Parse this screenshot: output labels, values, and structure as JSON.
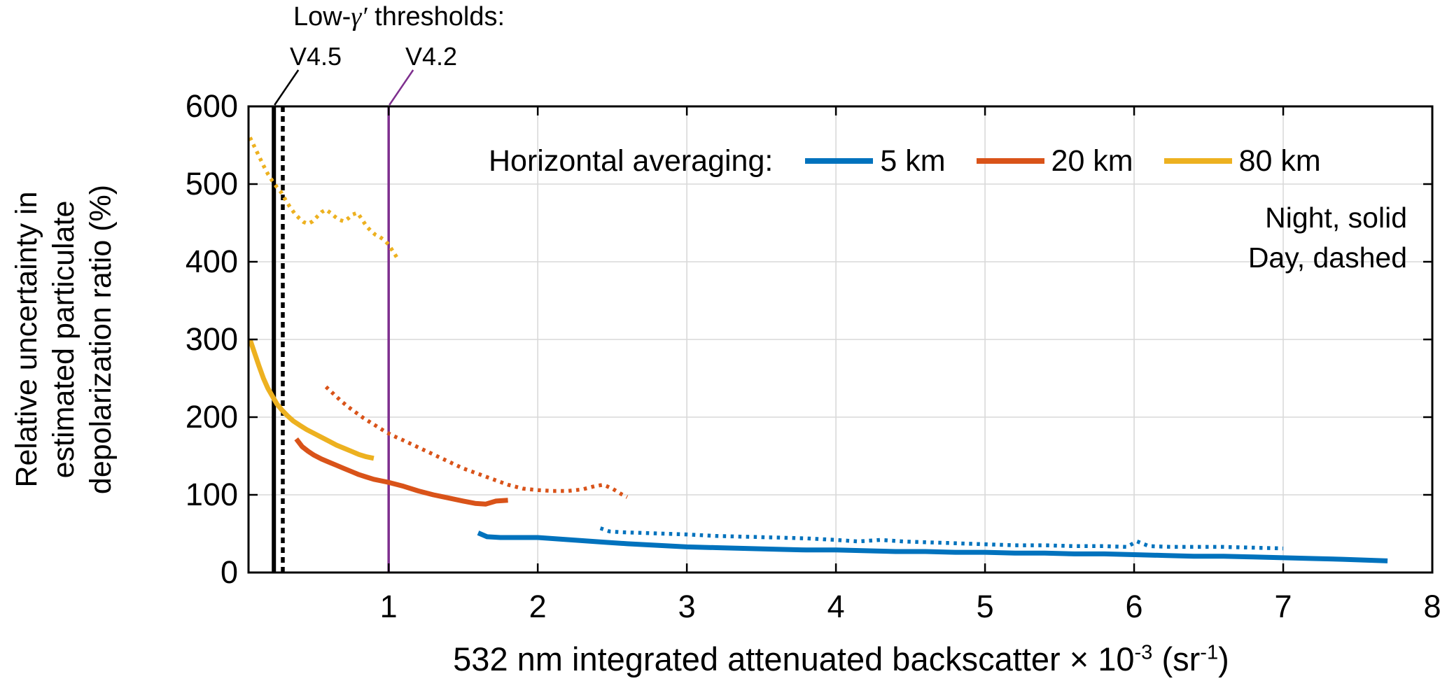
{
  "chart_data": {
    "type": "line",
    "xlabel": "532 nm integrated attenuated backscatter × 10⁻³ (sr⁻¹)",
    "xlabel_parts": {
      "text": "532 nm integrated attenuated backscatter × 10",
      "sup": "-3",
      "mid": " (sr",
      "sup2": "-1",
      "end": ")"
    },
    "ylabel": "Relative uncertainty in estimated particulate depolarization ratio (%)",
    "ylabel_lines": [
      "Relative uncertainty in",
      "estimated particulate",
      "depolarization ratio (%)"
    ],
    "xlim": [
      0.06,
      8
    ],
    "ylim": [
      0,
      600
    ],
    "xticks": [
      1,
      2,
      3,
      4,
      5,
      6,
      7,
      8
    ],
    "yticks": [
      0,
      100,
      200,
      300,
      400,
      500,
      600
    ],
    "grid": true,
    "grid_color": "#d9d9d9",
    "legend": {
      "heading": "Horizontal averaging:",
      "position": "top",
      "entries": [
        {
          "label": "5 km",
          "color": "#0072BD"
        },
        {
          "label": "20 km",
          "color": "#D95319"
        },
        {
          "label": "80 km",
          "color": "#EDB120"
        }
      ]
    },
    "notes": [
      "Night, solid",
      "Day, dashed"
    ],
    "threshold_annotation": {
      "title_prefix": "Low-",
      "title_gamma": "γ′",
      "title_suffix": " thresholds:",
      "labels": [
        {
          "text": "V4.5",
          "x": 0.23,
          "color": "#000000"
        },
        {
          "text": "V4.2",
          "x": 1.0,
          "color": "#7E2F8E"
        }
      ]
    },
    "threshold_lines": [
      {
        "version": "V4.5",
        "period": "night",
        "x": 0.23,
        "color": "#000000",
        "style": "solid"
      },
      {
        "version": "V4.5",
        "period": "day",
        "x": 0.29,
        "color": "#000000",
        "style": "dashed"
      },
      {
        "version": "V4.2",
        "period": "night",
        "x": 1.0,
        "color": "#7E2F8E",
        "style": "solid"
      }
    ],
    "series": [
      {
        "name": "80 km",
        "period": "day",
        "line_style": "dotted",
        "color": "#EDB120",
        "points": [
          [
            0.07,
            560
          ],
          [
            0.1,
            548
          ],
          [
            0.13,
            536
          ],
          [
            0.16,
            524
          ],
          [
            0.19,
            513
          ],
          [
            0.22,
            504
          ],
          [
            0.25,
            496
          ],
          [
            0.28,
            489
          ],
          [
            0.31,
            479
          ],
          [
            0.34,
            470
          ],
          [
            0.37,
            462
          ],
          [
            0.4,
            456
          ],
          [
            0.43,
            451
          ],
          [
            0.46,
            449
          ],
          [
            0.49,
            452
          ],
          [
            0.52,
            458
          ],
          [
            0.55,
            464
          ],
          [
            0.58,
            467
          ],
          [
            0.61,
            463
          ],
          [
            0.64,
            458
          ],
          [
            0.67,
            454
          ],
          [
            0.7,
            452
          ],
          [
            0.73,
            456
          ],
          [
            0.76,
            461
          ],
          [
            0.79,
            463
          ],
          [
            0.82,
            455
          ],
          [
            0.85,
            446
          ],
          [
            0.88,
            440
          ],
          [
            0.91,
            435
          ],
          [
            0.94,
            432
          ],
          [
            0.97,
            428
          ],
          [
            1.0,
            422
          ],
          [
            1.03,
            413
          ],
          [
            1.06,
            404
          ]
        ]
      },
      {
        "name": "80 km",
        "period": "night",
        "line_style": "solid",
        "color": "#EDB120",
        "points": [
          [
            0.07,
            300
          ],
          [
            0.1,
            283
          ],
          [
            0.13,
            266
          ],
          [
            0.16,
            250
          ],
          [
            0.19,
            237
          ],
          [
            0.22,
            227
          ],
          [
            0.25,
            217
          ],
          [
            0.28,
            210
          ],
          [
            0.32,
            202
          ],
          [
            0.36,
            195
          ],
          [
            0.4,
            190
          ],
          [
            0.45,
            184
          ],
          [
            0.5,
            179
          ],
          [
            0.55,
            174
          ],
          [
            0.6,
            169
          ],
          [
            0.65,
            164
          ],
          [
            0.7,
            160
          ],
          [
            0.75,
            156
          ],
          [
            0.8,
            152
          ],
          [
            0.85,
            149
          ],
          [
            0.9,
            147
          ]
        ]
      },
      {
        "name": "20 km",
        "period": "day",
        "line_style": "dotted",
        "color": "#D95319",
        "points": [
          [
            0.58,
            239
          ],
          [
            0.63,
            230
          ],
          [
            0.68,
            221
          ],
          [
            0.73,
            213
          ],
          [
            0.78,
            206
          ],
          [
            0.83,
            199
          ],
          [
            0.88,
            193
          ],
          [
            0.93,
            187
          ],
          [
            0.98,
            181
          ],
          [
            1.03,
            176
          ],
          [
            1.1,
            170
          ],
          [
            1.2,
            161
          ],
          [
            1.3,
            152
          ],
          [
            1.4,
            143
          ],
          [
            1.5,
            134
          ],
          [
            1.6,
            127
          ],
          [
            1.7,
            120
          ],
          [
            1.8,
            113
          ],
          [
            1.9,
            108
          ],
          [
            2.0,
            106
          ],
          [
            2.1,
            105
          ],
          [
            2.2,
            105
          ],
          [
            2.3,
            107
          ],
          [
            2.38,
            111
          ],
          [
            2.44,
            113
          ],
          [
            2.5,
            108
          ],
          [
            2.56,
            101
          ],
          [
            2.6,
            97
          ]
        ]
      },
      {
        "name": "20 km",
        "period": "night",
        "line_style": "solid",
        "color": "#D95319",
        "points": [
          [
            0.38,
            172
          ],
          [
            0.42,
            162
          ],
          [
            0.46,
            156
          ],
          [
            0.5,
            151
          ],
          [
            0.55,
            146
          ],
          [
            0.6,
            142
          ],
          [
            0.65,
            138
          ],
          [
            0.7,
            134
          ],
          [
            0.75,
            130
          ],
          [
            0.8,
            126
          ],
          [
            0.85,
            123
          ],
          [
            0.9,
            120
          ],
          [
            0.95,
            118
          ],
          [
            1.0,
            116
          ],
          [
            1.1,
            111
          ],
          [
            1.2,
            105
          ],
          [
            1.3,
            100
          ],
          [
            1.4,
            96
          ],
          [
            1.5,
            92
          ],
          [
            1.58,
            89
          ],
          [
            1.65,
            88
          ],
          [
            1.72,
            92
          ],
          [
            1.8,
            93
          ]
        ]
      },
      {
        "name": "5 km",
        "period": "day",
        "line_style": "dotted",
        "color": "#0072BD",
        "points": [
          [
            2.42,
            57
          ],
          [
            2.48,
            53
          ],
          [
            2.55,
            52
          ],
          [
            2.7,
            51
          ],
          [
            2.85,
            50
          ],
          [
            3.0,
            49
          ],
          [
            3.2,
            47
          ],
          [
            3.4,
            46
          ],
          [
            3.6,
            45
          ],
          [
            3.8,
            44
          ],
          [
            4.0,
            42
          ],
          [
            4.15,
            40
          ],
          [
            4.3,
            42
          ],
          [
            4.45,
            40
          ],
          [
            4.6,
            39
          ],
          [
            4.75,
            38
          ],
          [
            4.9,
            37
          ],
          [
            5.05,
            36
          ],
          [
            5.2,
            35
          ],
          [
            5.4,
            35
          ],
          [
            5.6,
            34
          ],
          [
            5.8,
            34
          ],
          [
            5.95,
            33
          ],
          [
            6.02,
            40
          ],
          [
            6.1,
            34
          ],
          [
            6.25,
            33
          ],
          [
            6.4,
            33
          ],
          [
            6.6,
            33
          ],
          [
            6.8,
            32
          ],
          [
            7.0,
            31
          ]
        ]
      },
      {
        "name": "5 km",
        "period": "night",
        "line_style": "solid",
        "color": "#0072BD",
        "points": [
          [
            1.6,
            51
          ],
          [
            1.66,
            46
          ],
          [
            1.75,
            45
          ],
          [
            1.85,
            45
          ],
          [
            2.0,
            45
          ],
          [
            2.15,
            43
          ],
          [
            2.3,
            41
          ],
          [
            2.45,
            39
          ],
          [
            2.6,
            37
          ],
          [
            2.8,
            35
          ],
          [
            3.0,
            33
          ],
          [
            3.2,
            32
          ],
          [
            3.4,
            31
          ],
          [
            3.6,
            30
          ],
          [
            3.8,
            29
          ],
          [
            4.0,
            29
          ],
          [
            4.2,
            28
          ],
          [
            4.4,
            27
          ],
          [
            4.6,
            27
          ],
          [
            4.8,
            26
          ],
          [
            5.0,
            26
          ],
          [
            5.2,
            25
          ],
          [
            5.4,
            25
          ],
          [
            5.6,
            24
          ],
          [
            5.8,
            24
          ],
          [
            6.0,
            23
          ],
          [
            6.2,
            22
          ],
          [
            6.4,
            21
          ],
          [
            6.6,
            21
          ],
          [
            6.8,
            20
          ],
          [
            7.0,
            19
          ],
          [
            7.2,
            18
          ],
          [
            7.4,
            17
          ],
          [
            7.55,
            16
          ],
          [
            7.7,
            15
          ]
        ]
      }
    ]
  }
}
